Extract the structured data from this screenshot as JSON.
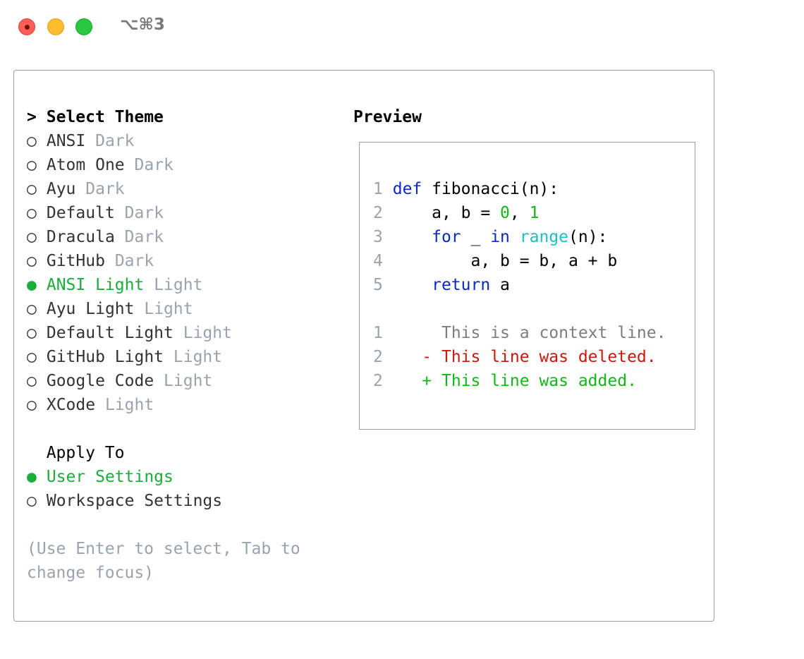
{
  "window": {
    "title": "⌥⌘3"
  },
  "theme_list": {
    "header": "Select Theme",
    "cursor": ">",
    "items": [
      {
        "name": "ANSI",
        "type": "Dark",
        "selected": false
      },
      {
        "name": "Atom One",
        "type": "Dark",
        "selected": false
      },
      {
        "name": "Ayu",
        "type": "Dark",
        "selected": false
      },
      {
        "name": "Default",
        "type": "Dark",
        "selected": false
      },
      {
        "name": "Dracula",
        "type": "Dark",
        "selected": false
      },
      {
        "name": "GitHub",
        "type": "Dark",
        "selected": false
      },
      {
        "name": "ANSI Light",
        "type": "Light",
        "selected": true
      },
      {
        "name": "Ayu Light",
        "type": "Light",
        "selected": false
      },
      {
        "name": "Default Light",
        "type": "Light",
        "selected": false
      },
      {
        "name": "GitHub Light",
        "type": "Light",
        "selected": false
      },
      {
        "name": "Google Code",
        "type": "Light",
        "selected": false
      },
      {
        "name": "XCode",
        "type": "Light",
        "selected": false
      }
    ]
  },
  "apply_to": {
    "header": "Apply To",
    "items": [
      {
        "label": "User Settings",
        "selected": true
      },
      {
        "label": "Workspace Settings",
        "selected": false
      }
    ]
  },
  "hint": [
    "(Use Enter to select, Tab to",
    "change focus)"
  ],
  "preview": {
    "header": "Preview",
    "code": [
      {
        "n": "1",
        "tokens": [
          [
            "kw",
            "def"
          ],
          [
            "plain",
            " fibonacci(n):"
          ]
        ]
      },
      {
        "n": "2",
        "tokens": [
          [
            "plain",
            "    a, b = "
          ],
          [
            "num",
            "0"
          ],
          [
            "plain",
            ", "
          ],
          [
            "num",
            "1"
          ]
        ]
      },
      {
        "n": "3",
        "tokens": [
          [
            "plain",
            "    "
          ],
          [
            "kw",
            "for"
          ],
          [
            "plain",
            " _ "
          ],
          [
            "kw",
            "in"
          ],
          [
            "plain",
            " "
          ],
          [
            "bi",
            "range"
          ],
          [
            "plain",
            "(n):"
          ]
        ]
      },
      {
        "n": "4",
        "tokens": [
          [
            "plain",
            "        a, b = b, a + b"
          ]
        ]
      },
      {
        "n": "5",
        "tokens": [
          [
            "plain",
            "    "
          ],
          [
            "kw",
            "return"
          ],
          [
            "plain",
            " a"
          ]
        ]
      }
    ],
    "diff": [
      {
        "n": "1",
        "marker": " ",
        "text": "This is a context line.",
        "kind": "ctx"
      },
      {
        "n": "2",
        "marker": "-",
        "text": "This line was deleted.",
        "kind": "del"
      },
      {
        "n": "2",
        "marker": "+",
        "text": "This line was added.",
        "kind": "add"
      }
    ]
  },
  "colors": {
    "selected": "#1aad3a",
    "muted": "#9aa3ad",
    "keyword": "#0a28c8",
    "number": "#11b815",
    "builtin": "#1cbfbf",
    "deleted": "#c81a0a",
    "added": "#11b815"
  }
}
